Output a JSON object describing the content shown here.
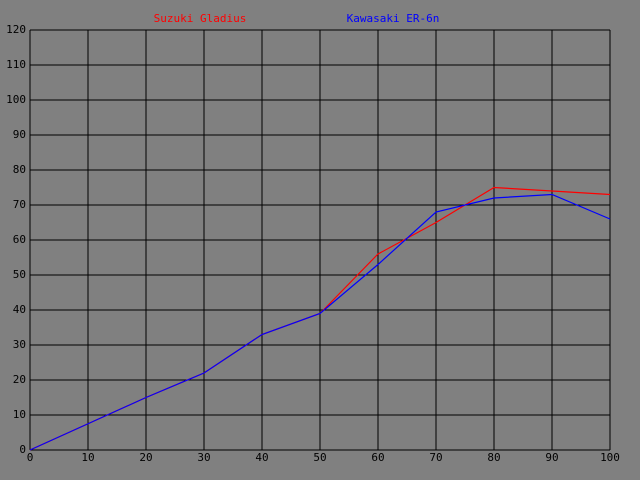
{
  "chart_data": {
    "type": "line",
    "x": [
      0,
      10,
      20,
      30,
      40,
      50,
      60,
      70,
      80,
      90,
      100
    ],
    "series": [
      {
        "name": "Suzuki Gladius",
        "color": "#ff0000",
        "values": [
          0,
          7.5,
          15,
          22,
          33,
          39,
          56,
          65,
          75,
          74,
          73
        ]
      },
      {
        "name": "Kawasaki ER-6n",
        "color": "#0000ff",
        "values": [
          0,
          7.5,
          15,
          22,
          33,
          39,
          53,
          68,
          72,
          73,
          66
        ]
      }
    ],
    "xlim": [
      0,
      100
    ],
    "xticks": [
      0,
      10,
      20,
      30,
      40,
      50,
      60,
      70,
      80,
      90,
      100
    ],
    "ylim": [
      0,
      120
    ],
    "yticks": [
      0,
      10,
      20,
      30,
      40,
      50,
      60,
      70,
      80,
      90,
      100,
      110,
      120
    ],
    "grid": true,
    "background": "#808080",
    "grid_color": "#000000"
  }
}
